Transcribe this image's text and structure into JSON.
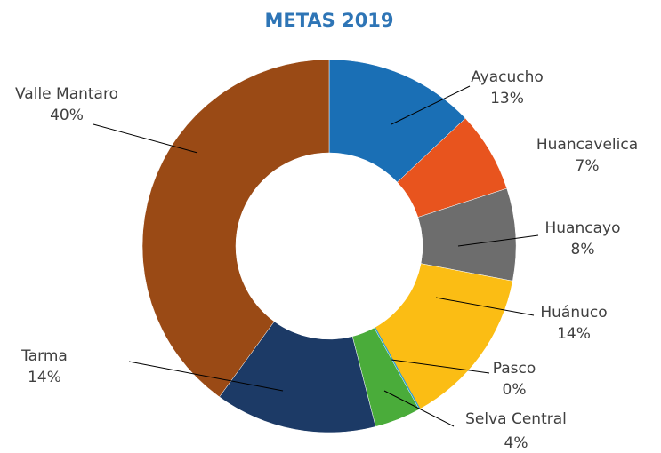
{
  "chart_data": {
    "type": "pie",
    "title": "METAS 2019",
    "categories": [
      "Ayacucho",
      "Huancavelica",
      "Huancayo",
      "Huánuco",
      "Pasco",
      "Selva Central",
      "Tarma",
      "Valle Mantaro"
    ],
    "values": [
      13,
      7,
      8,
      14,
      0,
      4,
      14,
      40
    ],
    "value_labels": [
      "13%",
      "7%",
      "8%",
      "14%",
      "0%",
      "4%",
      "14%",
      "40%"
    ],
    "colors": [
      "#1a6fb5",
      "#e8541e",
      "#6d6d6d",
      "#fbbd14",
      "#2a9fd8",
      "#4aac3a",
      "#1c3a66",
      "#9a4a15"
    ]
  }
}
